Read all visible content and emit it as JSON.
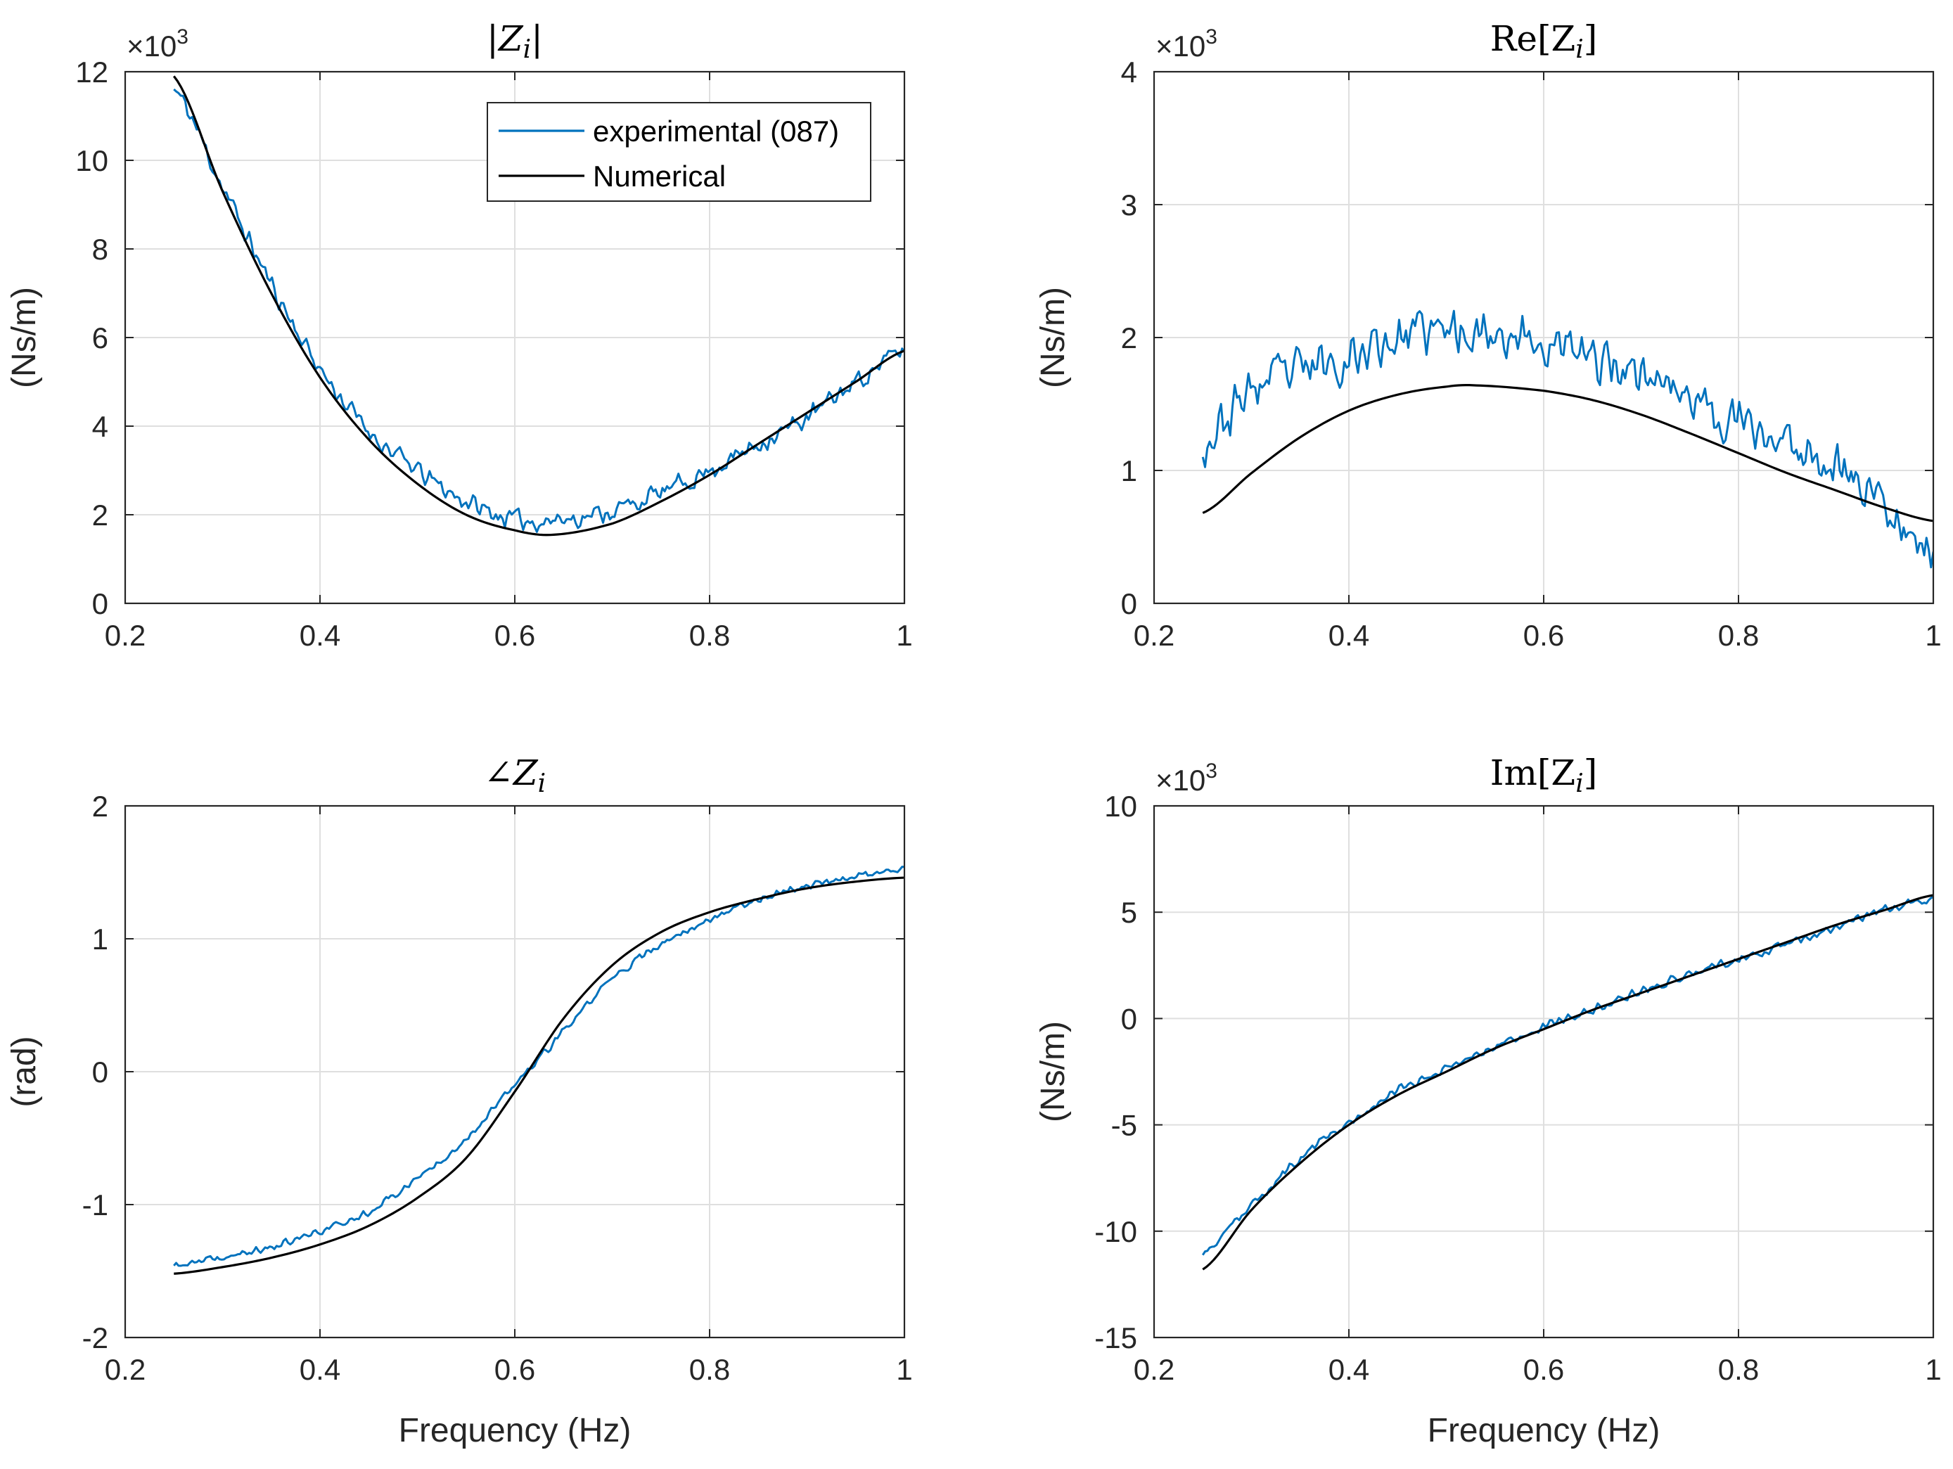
{
  "colors": {
    "experimental": "#0072BD",
    "numerical": "#000000",
    "grid": "#DFDFDF",
    "axis": "#262626"
  },
  "legend": {
    "entries": [
      "experimental (087)",
      "Numerical"
    ]
  },
  "chart_data": [
    {
      "id": "mag",
      "type": "line",
      "title": {
        "base": "|Z",
        "sub": "i",
        "tail": "|"
      },
      "xlabel": "",
      "ylabel": "(Ns/m)",
      "exponent": {
        "prefix": "×10",
        "power": "3"
      },
      "xlim": [
        0.2,
        1
      ],
      "ylim": [
        0,
        12
      ],
      "xticks": [
        0.2,
        0.4,
        0.6,
        0.8,
        1
      ],
      "xtick_labels": [
        "0.2",
        "0.4",
        "0.6",
        "0.8",
        "1"
      ],
      "yticks": [
        0,
        2,
        4,
        6,
        8,
        10,
        12
      ],
      "ytick_labels": [
        "0",
        "2",
        "4",
        "6",
        "8",
        "10",
        "12"
      ],
      "legend_position": "top-right",
      "series": [
        {
          "name": "experimental (087)",
          "noise": 0.28,
          "seed": 11,
          "x": [
            0.25,
            0.3,
            0.35,
            0.4,
            0.45,
            0.5,
            0.55,
            0.6,
            0.65,
            0.7,
            0.75,
            0.8,
            0.85,
            0.9,
            0.95,
            1.0
          ],
          "y": [
            11.6,
            9.4,
            7.2,
            5.3,
            3.9,
            3.0,
            2.3,
            1.9,
            1.9,
            2.1,
            2.5,
            3.0,
            3.6,
            4.2,
            5.0,
            5.7
          ]
        },
        {
          "name": "Numerical",
          "noise": 0,
          "seed": 0,
          "x": [
            0.25,
            0.3,
            0.35,
            0.4,
            0.45,
            0.5,
            0.55,
            0.6,
            0.64,
            0.7,
            0.75,
            0.8,
            0.85,
            0.9,
            0.95,
            1.0
          ],
          "y": [
            11.9,
            9.3,
            7.0,
            5.1,
            3.7,
            2.7,
            2.0,
            1.65,
            1.55,
            1.8,
            2.3,
            2.9,
            3.6,
            4.3,
            5.0,
            5.7
          ]
        }
      ]
    },
    {
      "id": "re",
      "type": "line",
      "title": {
        "base": "Re[Z",
        "sub": "i",
        "tail": "]"
      },
      "xlabel": "",
      "ylabel": "(Ns/m)",
      "exponent": {
        "prefix": "×10",
        "power": "3"
      },
      "xlim": [
        0.2,
        1
      ],
      "ylim": [
        0,
        4
      ],
      "xticks": [
        0.2,
        0.4,
        0.6,
        0.8,
        1
      ],
      "xtick_labels": [
        "0.2",
        "0.4",
        "0.6",
        "0.8",
        "1"
      ],
      "yticks": [
        0,
        1,
        2,
        3,
        4
      ],
      "ytick_labels": [
        "0",
        "1",
        "2",
        "3",
        "4"
      ],
      "series": [
        {
          "name": "experimental (087)",
          "noise": 0.22,
          "seed": 23,
          "x": [
            0.25,
            0.3,
            0.35,
            0.4,
            0.45,
            0.5,
            0.55,
            0.6,
            0.65,
            0.7,
            0.75,
            0.8,
            0.85,
            0.9,
            0.95,
            1.0
          ],
          "y": [
            1.2,
            1.6,
            1.75,
            1.85,
            2.0,
            2.05,
            2.05,
            1.95,
            1.85,
            1.75,
            1.55,
            1.35,
            1.2,
            1.05,
            0.75,
            0.4
          ]
        },
        {
          "name": "Numerical",
          "noise": 0,
          "seed": 0,
          "x": [
            0.25,
            0.3,
            0.35,
            0.4,
            0.45,
            0.5,
            0.53,
            0.6,
            0.65,
            0.7,
            0.75,
            0.8,
            0.85,
            0.9,
            0.95,
            1.0
          ],
          "y": [
            0.68,
            0.98,
            1.25,
            1.45,
            1.57,
            1.63,
            1.64,
            1.6,
            1.53,
            1.42,
            1.28,
            1.13,
            0.98,
            0.85,
            0.72,
            0.62
          ]
        }
      ]
    },
    {
      "id": "phase",
      "type": "line",
      "title": {
        "base": "∠Z",
        "sub": "i",
        "tail": ""
      },
      "xlabel": "Frequency (Hz)",
      "ylabel": "(rad)",
      "exponent": null,
      "xlim": [
        0.2,
        1
      ],
      "ylim": [
        -2,
        2
      ],
      "xticks": [
        0.2,
        0.4,
        0.6,
        0.8,
        1
      ],
      "xtick_labels": [
        "0.2",
        "0.4",
        "0.6",
        "0.8",
        "1"
      ],
      "yticks": [
        -2,
        -1,
        0,
        1,
        2
      ],
      "ytick_labels": [
        "-2",
        "-1",
        "0",
        "1",
        "2"
      ],
      "series": [
        {
          "name": "experimental (087)",
          "noise": 0.035,
          "seed": 37,
          "x": [
            0.25,
            0.3,
            0.35,
            0.4,
            0.45,
            0.5,
            0.55,
            0.6,
            0.65,
            0.7,
            0.75,
            0.8,
            0.85,
            0.9,
            0.95,
            1.0
          ],
          "y": [
            -1.46,
            -1.4,
            -1.32,
            -1.2,
            -1.05,
            -0.8,
            -0.5,
            -0.1,
            0.3,
            0.7,
            0.95,
            1.15,
            1.3,
            1.4,
            1.47,
            1.52
          ]
        },
        {
          "name": "Numerical",
          "noise": 0,
          "seed": 0,
          "x": [
            0.25,
            0.3,
            0.35,
            0.4,
            0.45,
            0.5,
            0.55,
            0.6,
            0.65,
            0.7,
            0.75,
            0.8,
            0.85,
            0.9,
            0.95,
            1.0
          ],
          "y": [
            -1.52,
            -1.47,
            -1.4,
            -1.3,
            -1.16,
            -0.95,
            -0.65,
            -0.15,
            0.4,
            0.8,
            1.05,
            1.2,
            1.3,
            1.38,
            1.43,
            1.46
          ]
        }
      ]
    },
    {
      "id": "im",
      "type": "line",
      "title": {
        "base": "Im[Z",
        "sub": "i",
        "tail": "]"
      },
      "xlabel": "Frequency (Hz)",
      "ylabel": "(Ns/m)",
      "exponent": {
        "prefix": "×10",
        "power": "3"
      },
      "xlim": [
        0.2,
        1
      ],
      "ylim": [
        -15,
        10
      ],
      "xticks": [
        0.2,
        0.4,
        0.6,
        0.8,
        1
      ],
      "xtick_labels": [
        "0.2",
        "0.4",
        "0.6",
        "0.8",
        "1"
      ],
      "yticks": [
        -15,
        -10,
        -5,
        0,
        5,
        10
      ],
      "ytick_labels": [
        "-15",
        "-10",
        "-5",
        "0",
        "5",
        "10"
      ],
      "series": [
        {
          "name": "experimental (087)",
          "noise": 0.25,
          "seed": 53,
          "x": [
            0.25,
            0.3,
            0.35,
            0.4,
            0.45,
            0.5,
            0.55,
            0.6,
            0.65,
            0.7,
            0.75,
            0.8,
            0.85,
            0.9,
            0.95,
            1.0
          ],
          "y": [
            -11.0,
            -8.8,
            -6.6,
            -4.9,
            -3.4,
            -2.3,
            -1.3,
            -0.4,
            0.4,
            1.3,
            2.1,
            2.8,
            3.5,
            4.3,
            5.1,
            5.6
          ]
        },
        {
          "name": "Numerical",
          "noise": 0,
          "seed": 0,
          "x": [
            0.25,
            0.3,
            0.35,
            0.4,
            0.45,
            0.5,
            0.55,
            0.6,
            0.65,
            0.7,
            0.75,
            0.8,
            0.85,
            0.9,
            0.95,
            1.0
          ],
          "y": [
            -11.8,
            -9.0,
            -6.8,
            -5.0,
            -3.6,
            -2.5,
            -1.4,
            -0.5,
            0.4,
            1.2,
            2.0,
            2.8,
            3.6,
            4.4,
            5.1,
            5.8
          ]
        }
      ]
    }
  ]
}
